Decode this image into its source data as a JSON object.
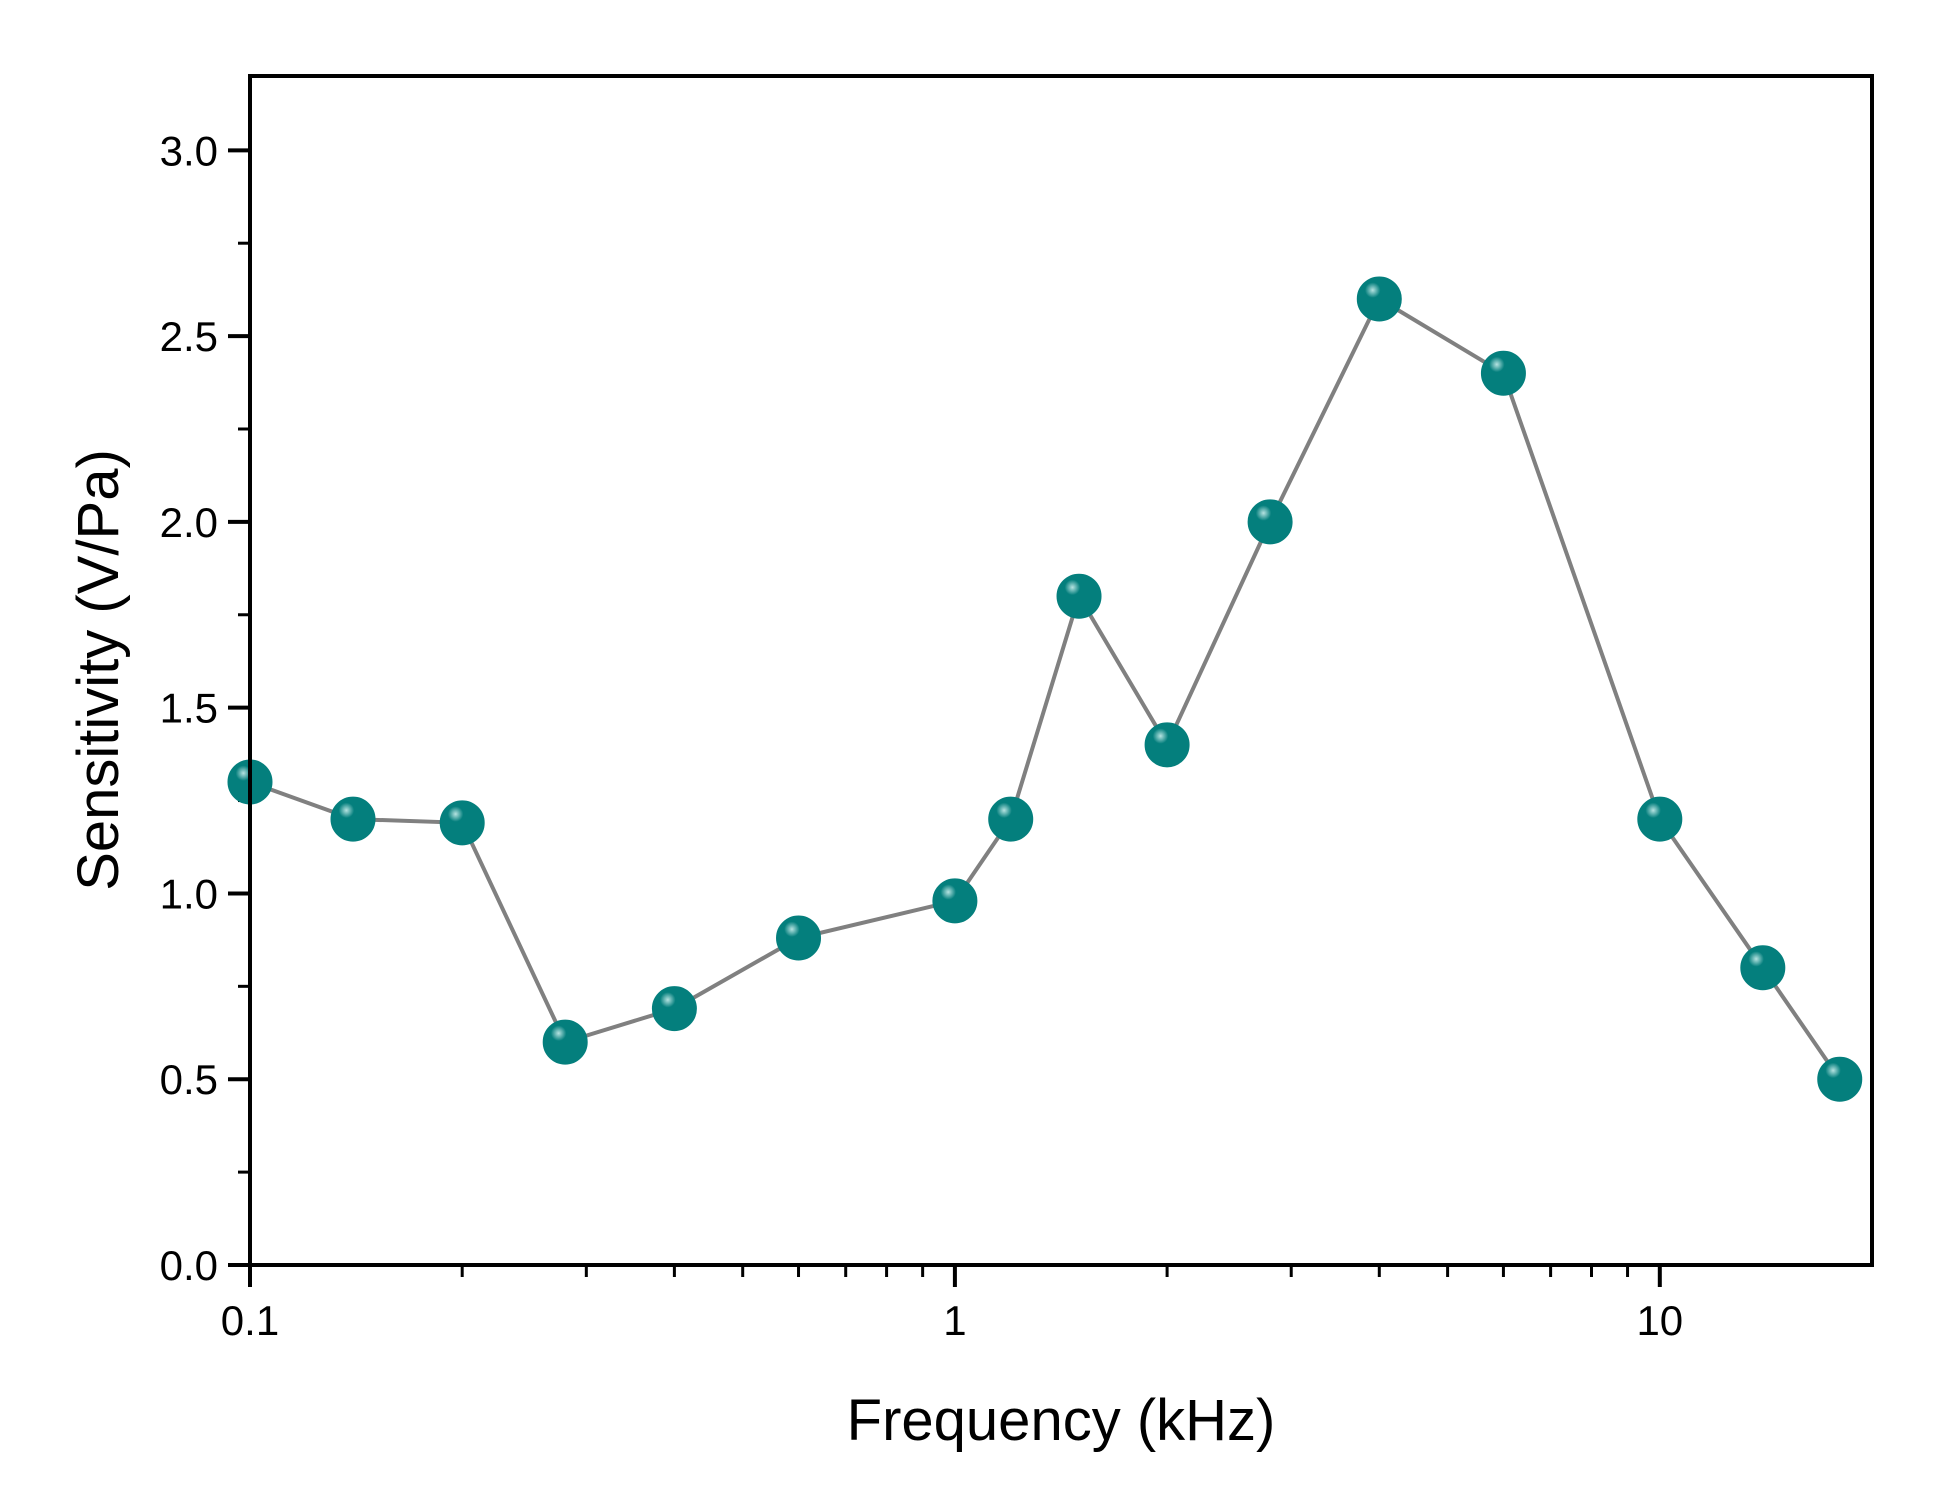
{
  "chart_data": {
    "type": "line",
    "xlabel": "Frequency (kHz)",
    "ylabel": "Sensitivity (V/Pa)",
    "x_scale": "log",
    "xlim": [
      0.1,
      20
    ],
    "ylim": [
      0.0,
      3.2
    ],
    "x_ticks": [
      {
        "value": 0.1,
        "label": "0.1"
      },
      {
        "value": 1,
        "label": "1"
      },
      {
        "value": 10,
        "label": "10"
      }
    ],
    "y_ticks": [
      {
        "value": 0.0,
        "label": "0.0"
      },
      {
        "value": 0.5,
        "label": "0.5"
      },
      {
        "value": 1.0,
        "label": "1.0"
      },
      {
        "value": 1.5,
        "label": "1.5"
      },
      {
        "value": 2.0,
        "label": "2.0"
      },
      {
        "value": 2.5,
        "label": "2.5"
      },
      {
        "value": 3.0,
        "label": "3.0"
      }
    ],
    "grid": false,
    "legend": "none",
    "series": [
      {
        "x": [
          0.1,
          0.14,
          0.2,
          0.28,
          0.4,
          0.6,
          1.0,
          1.2,
          1.5,
          2.0,
          2.8,
          4.0,
          6.0,
          10.0,
          14.0,
          18.0
        ],
        "y": [
          1.3,
          1.2,
          1.19,
          0.6,
          0.69,
          0.88,
          0.98,
          1.2,
          1.8,
          1.4,
          2.0,
          2.6,
          2.4,
          1.2,
          0.8,
          0.5
        ]
      }
    ],
    "colors": {
      "marker": "#047f7d",
      "marker_highlight": "#b6e3e1",
      "line": "#808080",
      "frame": "#000000"
    }
  }
}
